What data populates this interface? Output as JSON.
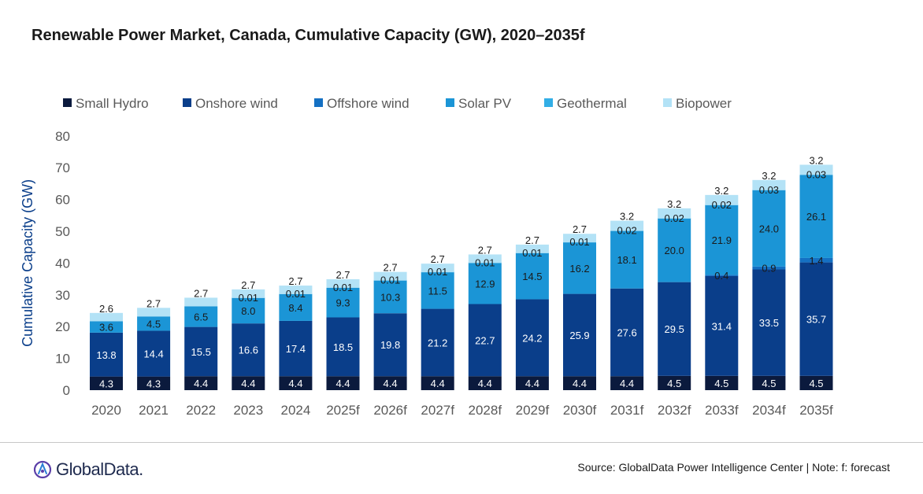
{
  "title": "Renewable Power Market, Canada, Cumulative Capacity (GW), 2020–2035f",
  "source_note": "Source: GlobalData Power Intelligence Center | Note: f: forecast",
  "logo_text": "GlobalData.",
  "colors": {
    "small_hydro": "#0b1a3d",
    "onshore_wind": "#0a3e8a",
    "offshore_wind": "#1470c3",
    "solar_pv": "#1b95d6",
    "geothermal": "#32aee6",
    "biopower": "#b3e2f6",
    "axis_text": "#595959",
    "ylabel_text": "#0a3e8a"
  },
  "chart_data": {
    "type": "bar",
    "stacked": true,
    "title": "Renewable Power Market, Canada, Cumulative Capacity (GW), 2020–2035f",
    "xlabel": "",
    "ylabel": "Cumulative Capacity (GW)",
    "ylim": [
      0,
      80
    ],
    "yticks": [
      0,
      10,
      20,
      30,
      40,
      50,
      60,
      70,
      80
    ],
    "grid": false,
    "legend_position": "top",
    "categories": [
      "2020",
      "2021",
      "2022",
      "2023",
      "2024",
      "2025f",
      "2026f",
      "2027f",
      "2028f",
      "2029f",
      "2030f",
      "2031f",
      "2032f",
      "2033f",
      "2034f",
      "2035f"
    ],
    "series": [
      {
        "name": "Small Hydro",
        "color": "#0b1a3d",
        "values": [
          4.3,
          4.3,
          4.4,
          4.4,
          4.4,
          4.4,
          4.4,
          4.4,
          4.4,
          4.4,
          4.4,
          4.4,
          4.5,
          4.5,
          4.5,
          4.5
        ],
        "labels": [
          "4.3",
          "4.3",
          "4.4",
          "4.4",
          "4.4",
          "4.4",
          "4.4",
          "4.4",
          "4.4",
          "4.4",
          "4.4",
          "4.4",
          "4.5",
          "4.5",
          "4.5",
          "4.5"
        ],
        "label_color": "#ffffff"
      },
      {
        "name": "Onshore wind",
        "color": "#0a3e8a",
        "values": [
          13.8,
          14.4,
          15.5,
          16.6,
          17.4,
          18.5,
          19.8,
          21.2,
          22.7,
          24.2,
          25.9,
          27.6,
          29.5,
          31.4,
          33.5,
          35.7
        ],
        "labels": [
          "13.8",
          "14.4",
          "15.5",
          "16.6",
          "17.4",
          "18.5",
          "19.8",
          "21.2",
          "22.7",
          "24.2",
          "25.9",
          "27.6",
          "29.5",
          "31.4",
          "33.5",
          "35.7"
        ],
        "label_color": "#ffffff"
      },
      {
        "name": "Offshore wind",
        "color": "#1470c3",
        "values": [
          0,
          0,
          0,
          0,
          0,
          0,
          0,
          0,
          0,
          0,
          0,
          0,
          0,
          0.4,
          0.9,
          1.4
        ],
        "labels": [
          "",
          "",
          "",
          "",
          "",
          "",
          "",
          "",
          "",
          "",
          "",
          "",
          "",
          "0.4",
          "0.9",
          "1.4"
        ],
        "label_color": "#1a1a1a"
      },
      {
        "name": "Solar PV",
        "color": "#1b95d6",
        "values": [
          3.6,
          4.5,
          6.5,
          8.0,
          8.4,
          9.3,
          10.3,
          11.5,
          12.9,
          14.5,
          16.2,
          18.1,
          20.0,
          21.9,
          24.0,
          26.1
        ],
        "labels": [
          "3.6",
          "4.5",
          "6.5",
          "8.0",
          "8.4",
          "9.3",
          "10.3",
          "11.5",
          "12.9",
          "14.5",
          "16.2",
          "18.1",
          "20.0",
          "21.9",
          "24.0",
          "26.1"
        ],
        "label_color": "#1a1a1a"
      },
      {
        "name": "Geothermal",
        "color": "#32aee6",
        "values": [
          0,
          0,
          0,
          0.01,
          0.01,
          0.01,
          0.01,
          0.01,
          0.01,
          0.01,
          0.01,
          0.02,
          0.02,
          0.02,
          0.03,
          0.03
        ],
        "labels": [
          "",
          "",
          "",
          "0.01",
          "0.01",
          "0.01",
          "0.01",
          "0.01",
          "0.01",
          "0.01",
          "0.01",
          "0.02",
          "0.02",
          "0.02",
          "0.03",
          "0.03"
        ],
        "label_color": "#1a1a1a"
      },
      {
        "name": "Biopower",
        "color": "#b3e2f6",
        "values": [
          2.6,
          2.7,
          2.7,
          2.7,
          2.7,
          2.7,
          2.7,
          2.7,
          2.7,
          2.7,
          2.7,
          3.2,
          3.2,
          3.2,
          3.2,
          3.2
        ],
        "labels": [
          "2.6",
          "2.7",
          "2.7",
          "2.7",
          "2.7",
          "2.7",
          "2.7",
          "2.7",
          "2.7",
          "2.7",
          "2.7",
          "3.2",
          "3.2",
          "3.2",
          "3.2",
          "3.2"
        ],
        "label_color": "#1a1a1a"
      }
    ]
  }
}
